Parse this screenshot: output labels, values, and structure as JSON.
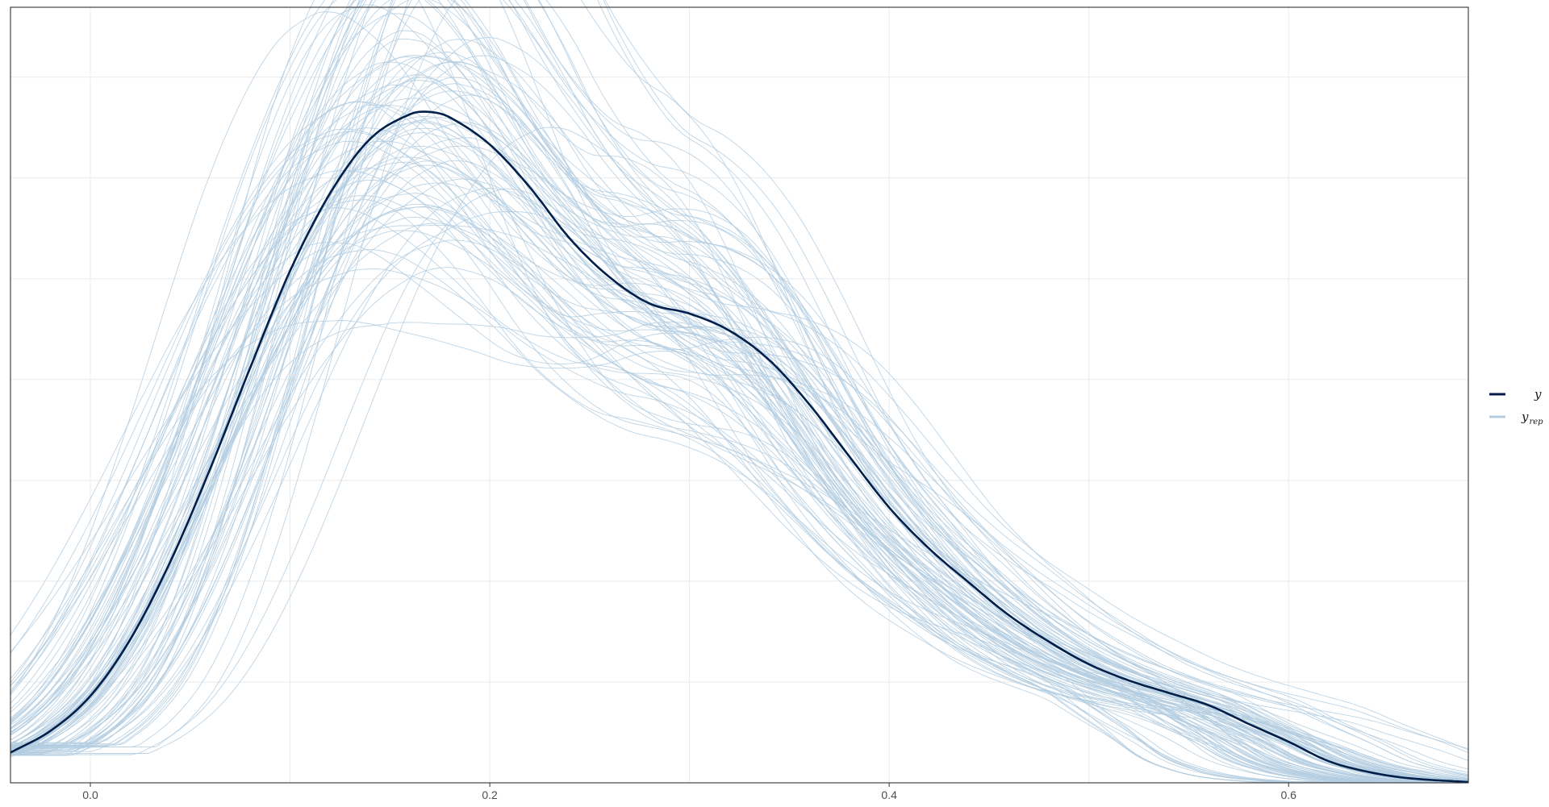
{
  "chart_data": {
    "type": "line",
    "title": "",
    "xlabel": "",
    "ylabel": "",
    "xlim": [
      -0.04,
      0.69
    ],
    "ylim": [
      0,
      1.0
    ],
    "x_ticks": [
      {
        "value": 0.0,
        "label": "0.0"
      },
      {
        "value": 0.2,
        "label": "0.2"
      },
      {
        "value": 0.4,
        "label": "0.4"
      },
      {
        "value": 0.6,
        "label": "0.6"
      }
    ],
    "x_minor_gridlines": [
      0.1,
      0.3,
      0.5
    ],
    "y_gridlines": [
      0.13,
      0.26,
      0.39,
      0.52,
      0.65,
      0.78,
      0.91
    ],
    "grid": true,
    "legend": {
      "placement": "right",
      "entries": [
        {
          "series": "y",
          "label": "y",
          "sub": ""
        },
        {
          "series": "yrep",
          "label": "y",
          "sub": "rep"
        }
      ]
    },
    "series": [
      {
        "name": "y",
        "color": "#011f4b",
        "x": [
          -0.04,
          -0.02,
          0.0,
          0.02,
          0.04,
          0.06,
          0.08,
          0.1,
          0.12,
          0.14,
          0.16,
          0.17,
          0.18,
          0.2,
          0.22,
          0.24,
          0.26,
          0.28,
          0.3,
          0.32,
          0.34,
          0.36,
          0.38,
          0.4,
          0.42,
          0.44,
          0.46,
          0.48,
          0.5,
          0.52,
          0.54,
          0.56,
          0.58,
          0.6,
          0.62,
          0.64,
          0.66,
          0.69
        ],
        "y": [
          0.039,
          0.067,
          0.112,
          0.185,
          0.285,
          0.405,
          0.535,
          0.66,
          0.76,
          0.83,
          0.862,
          0.865,
          0.858,
          0.823,
          0.768,
          0.702,
          0.652,
          0.618,
          0.605,
          0.583,
          0.545,
          0.488,
          0.421,
          0.355,
          0.302,
          0.258,
          0.216,
          0.182,
          0.153,
          0.132,
          0.116,
          0.1,
          0.076,
          0.053,
          0.028,
          0.014,
          0.006,
          0.001
        ]
      }
    ],
    "replicates": {
      "name": "yrep",
      "color": "#b3cde0",
      "count": 100
    }
  }
}
